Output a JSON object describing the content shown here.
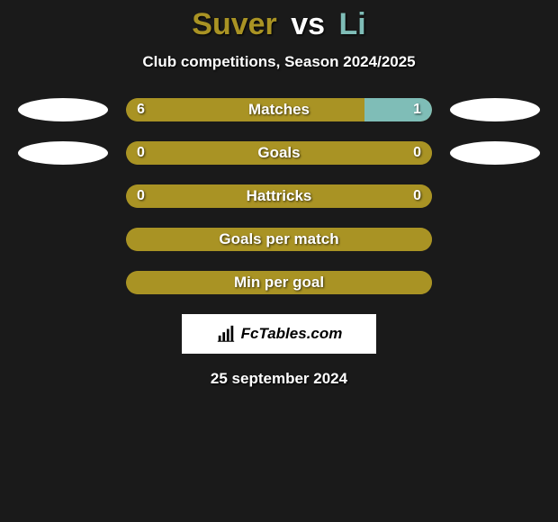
{
  "title": {
    "player1": "Suver",
    "vs": "vs",
    "player2": "Li",
    "player1_color": "#a99324",
    "player2_color": "#7fbdb7"
  },
  "subtitle": "Club competitions, Season 2024/2025",
  "colors": {
    "olive": "#a99324",
    "teal": "#7fbdb7",
    "bg": "#1a1a1a",
    "oval": "#ffffff"
  },
  "rows": [
    {
      "label": "Matches",
      "left_value": "6",
      "right_value": "1",
      "left_pct": 78,
      "right_pct": 22,
      "left_color": "#a99324",
      "right_color": "#7fbdb7",
      "show_values": true,
      "left_oval": true,
      "right_oval": true,
      "left_oval_offset": 0,
      "right_oval_offset": 0
    },
    {
      "label": "Goals",
      "left_value": "0",
      "right_value": "0",
      "left_pct": 100,
      "right_pct": 0,
      "left_color": "#a99324",
      "right_color": "#7fbdb7",
      "show_values": true,
      "left_oval": true,
      "right_oval": true,
      "left_oval_offset": 20,
      "right_oval_offset": 20
    },
    {
      "label": "Hattricks",
      "left_value": "0",
      "right_value": "0",
      "left_pct": 100,
      "right_pct": 0,
      "left_color": "#a99324",
      "right_color": "#7fbdb7",
      "show_values": true,
      "left_oval": false,
      "right_oval": false
    },
    {
      "label": "Goals per match",
      "left_value": "",
      "right_value": "",
      "left_pct": 100,
      "right_pct": 0,
      "left_color": "#a99324",
      "right_color": "#7fbdb7",
      "show_values": false,
      "left_oval": false,
      "right_oval": false
    },
    {
      "label": "Min per goal",
      "left_value": "",
      "right_value": "",
      "left_pct": 100,
      "right_pct": 0,
      "left_color": "#a99324",
      "right_color": "#7fbdb7",
      "show_values": false,
      "left_oval": false,
      "right_oval": false
    }
  ],
  "logo_text": "FcTables.com",
  "date_text": "25 september 2024"
}
